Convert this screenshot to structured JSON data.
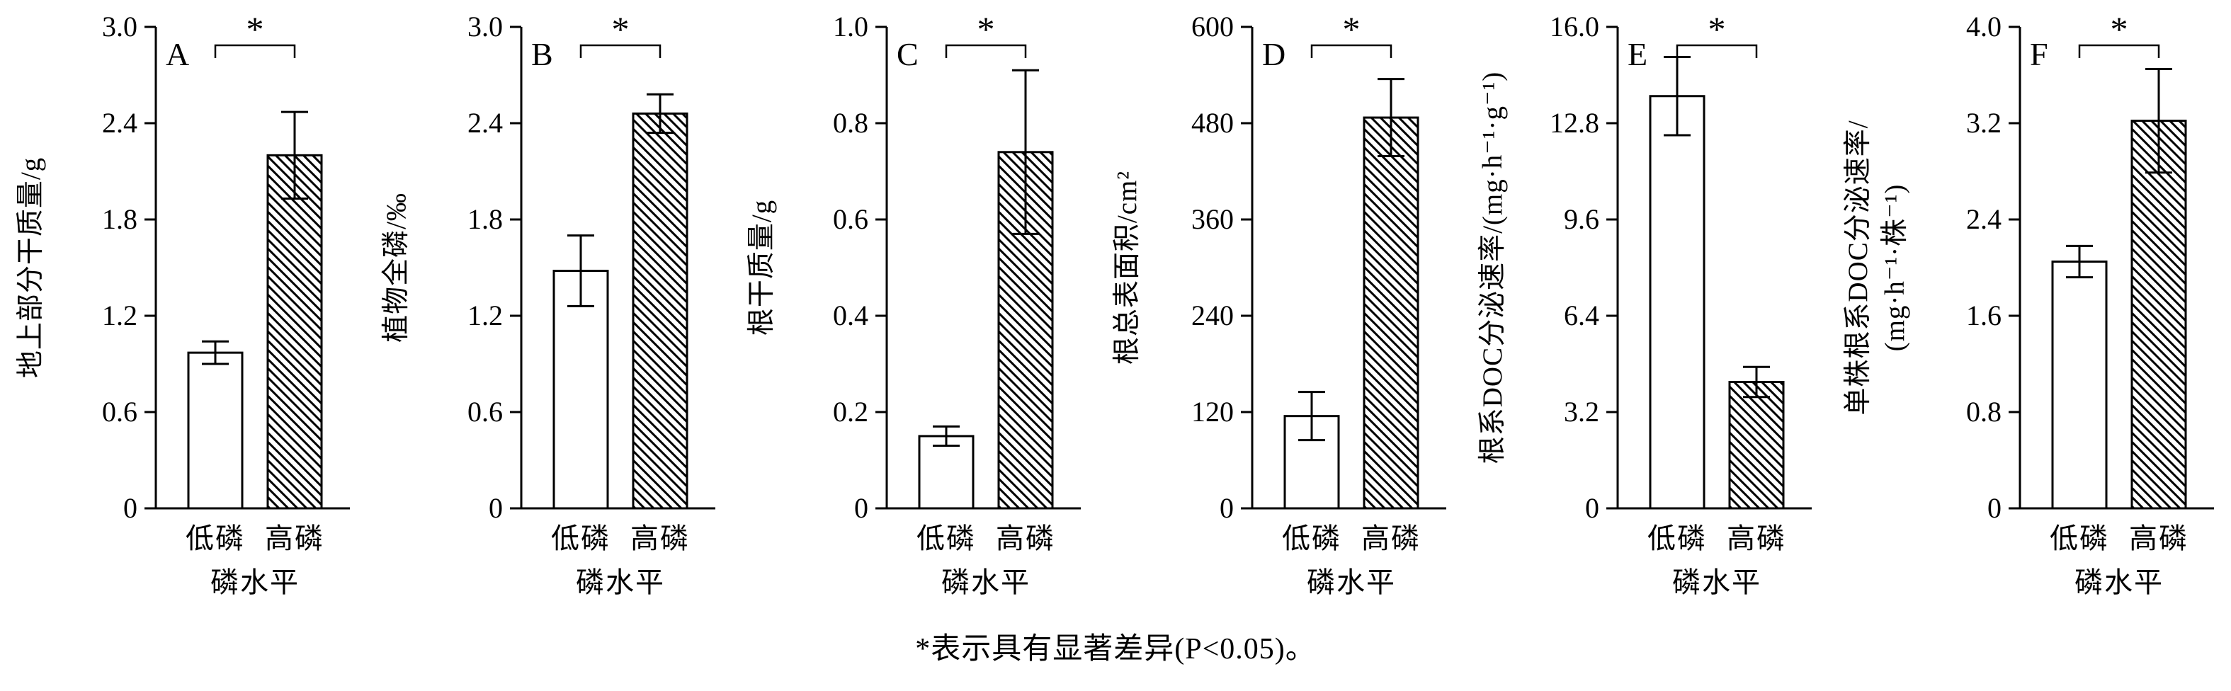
{
  "figure": {
    "caption": "*表示具有显著差异(P<0.05)。"
  },
  "colors": {
    "ink": "#000000",
    "bar_fill_low": "#ffffff"
  },
  "chart_data": {
    "type": "bar",
    "categories": [
      "低磷",
      "高磷"
    ],
    "xlabel": "磷水平",
    "significance_marker": "*",
    "bar_styles": {
      "low": "open-white",
      "high": "diagonal-hatched"
    },
    "legend_position": "none",
    "panels": [
      {
        "letter": "A",
        "ylabel_lines": [
          "地上部分干质量/g"
        ],
        "ylim": [
          0,
          3.0
        ],
        "yticks": [
          "0",
          "0.6",
          "1.2",
          "1.8",
          "2.4",
          "3.0"
        ],
        "values": [
          0.97,
          2.2
        ],
        "errors": [
          0.07,
          0.27
        ],
        "significant": true
      },
      {
        "letter": "B",
        "ylabel_lines": [
          "植物全磷/‰"
        ],
        "ylim": [
          0,
          3.0
        ],
        "yticks": [
          "0",
          "0.6",
          "1.2",
          "1.8",
          "2.4",
          "3.0"
        ],
        "values": [
          1.48,
          2.46
        ],
        "errors": [
          0.22,
          0.12
        ],
        "significant": true
      },
      {
        "letter": "C",
        "ylabel_lines": [
          "根干质量/g"
        ],
        "ylim": [
          0,
          1.0
        ],
        "yticks": [
          "0",
          "0.2",
          "0.4",
          "0.6",
          "0.8",
          "1.0"
        ],
        "values": [
          0.15,
          0.74
        ],
        "errors": [
          0.02,
          0.17
        ],
        "significant": true
      },
      {
        "letter": "D",
        "ylabel_lines": [
          "根总表面积/cm²"
        ],
        "ylim": [
          0,
          600
        ],
        "yticks": [
          "0",
          "120",
          "240",
          "360",
          "480",
          "600"
        ],
        "values": [
          115,
          487
        ],
        "errors": [
          30,
          48
        ],
        "significant": true
      },
      {
        "letter": "E",
        "ylabel_lines": [
          "根系DOC分泌速率/(mg·h⁻¹·g⁻¹)"
        ],
        "ylim": [
          0,
          16.0
        ],
        "yticks": [
          "0",
          "3.2",
          "6.4",
          "9.6",
          "12.8",
          "16.0"
        ],
        "values": [
          13.7,
          4.2
        ],
        "errors": [
          1.3,
          0.5
        ],
        "significant": true
      },
      {
        "letter": "F",
        "ylabel_lines": [
          "单株根系DOC分泌速率/",
          "(mg·h⁻¹·株⁻¹)"
        ],
        "ylim": [
          0,
          4.0
        ],
        "yticks": [
          "0",
          "0.8",
          "1.6",
          "2.4",
          "3.2",
          "4.0"
        ],
        "values": [
          2.05,
          3.22
        ],
        "errors": [
          0.13,
          0.43
        ],
        "significant": true
      }
    ]
  }
}
